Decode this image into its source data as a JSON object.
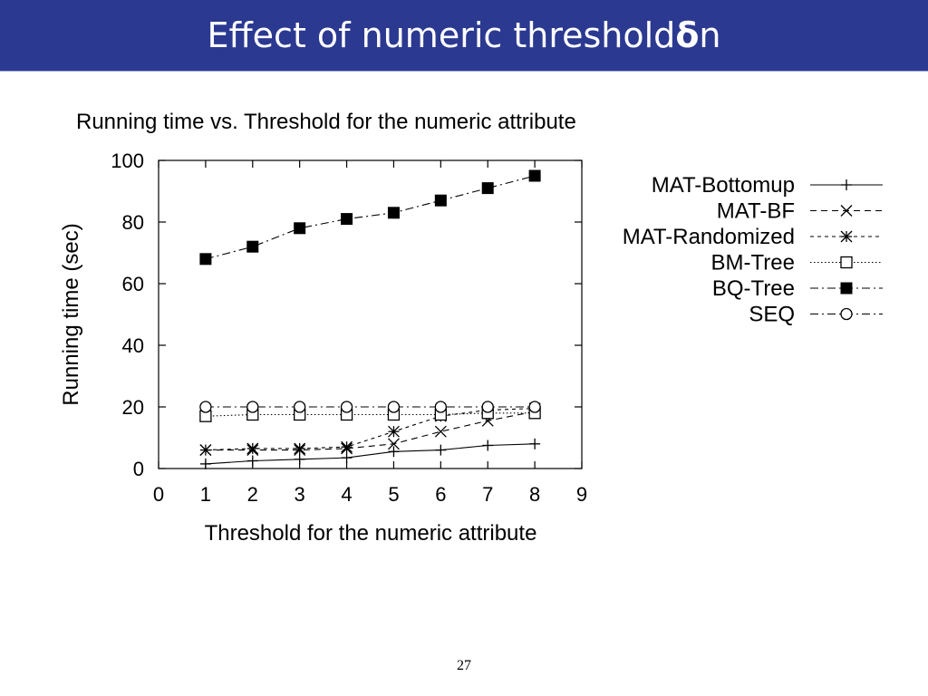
{
  "slide": {
    "title_main": "Effect of numeric threshold ",
    "title_delta": "δ",
    "title_suffix": "n",
    "page_number": "27"
  },
  "chart_data": {
    "type": "line",
    "title": "Running time vs. Threshold for the numeric attribute",
    "xlabel": "Threshold for the numeric attribute",
    "ylabel": "Running time (sec)",
    "xlim": [
      0,
      9
    ],
    "ylim": [
      0,
      100
    ],
    "xticks": [
      0,
      1,
      2,
      3,
      4,
      5,
      6,
      7,
      8,
      9
    ],
    "yticks": [
      0,
      20,
      40,
      60,
      80,
      100
    ],
    "grid": false,
    "legend_position": "right",
    "x": [
      1,
      2,
      3,
      4,
      5,
      6,
      7,
      8
    ],
    "series": [
      {
        "name": "MAT-Bottomup",
        "marker": "plus",
        "dash": "solid",
        "values": [
          1.5,
          2.5,
          3,
          3.5,
          5.5,
          6,
          7.5,
          8
        ]
      },
      {
        "name": "MAT-BF",
        "marker": "x",
        "dash": "dashed",
        "values": [
          6,
          6,
          6,
          6.5,
          8,
          12,
          15.5,
          18.5
        ]
      },
      {
        "name": "MAT-Randomized",
        "marker": "star",
        "dash": "dashed-short",
        "values": [
          6,
          6.5,
          6.5,
          7,
          12,
          17,
          19,
          19.5
        ]
      },
      {
        "name": "BM-Tree",
        "marker": "square-open",
        "dash": "dotted",
        "values": [
          17,
          17.5,
          17.5,
          17.5,
          17.5,
          17.5,
          18,
          18
        ]
      },
      {
        "name": "BQ-Tree",
        "marker": "square-filled",
        "dash": "dashdot",
        "values": [
          68,
          72,
          78,
          81,
          83,
          87,
          91,
          95
        ]
      },
      {
        "name": "SEQ",
        "marker": "circle-open",
        "dash": "dashdot",
        "values": [
          20,
          20,
          20,
          20,
          20,
          20,
          20,
          20
        ]
      }
    ]
  }
}
